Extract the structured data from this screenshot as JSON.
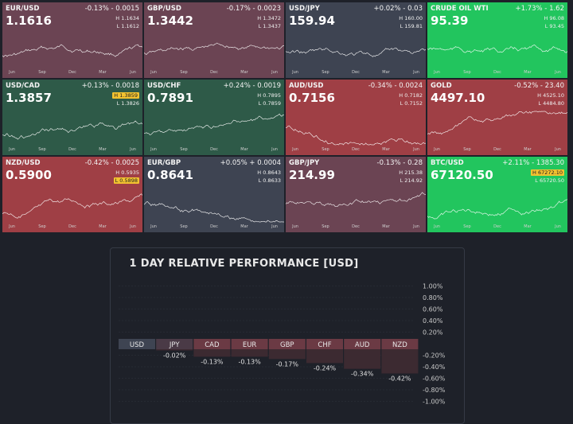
{
  "tiles": [
    {
      "symbol": "EUR/USD",
      "change": "-0.13% - 0.0015",
      "price": "1.1616",
      "high": "H 1.1634",
      "low": "L 1.1612",
      "bg": "#6b4453",
      "high_badge": false,
      "low_badge": false,
      "months": [
        "Jun",
        "Sep",
        "Dec",
        "Mar",
        "Jun"
      ]
    },
    {
      "symbol": "GBP/USD",
      "change": "-0.17% - 0.0023",
      "price": "1.3442",
      "high": "H 1.3472",
      "low": "L 1.3437",
      "bg": "#6b4453",
      "high_badge": false,
      "low_badge": false,
      "months": [
        "Jun",
        "Sep",
        "Dec",
        "Mar",
        "Jun"
      ]
    },
    {
      "symbol": "USD/JPY",
      "change": "+0.02% - 0.03",
      "price": "159.94",
      "high": "H 160.00",
      "low": "L 159.81",
      "bg": "#3e4452",
      "high_badge": false,
      "low_badge": false,
      "months": [
        "Jun",
        "Sep",
        "Dec",
        "Mar",
        "Jun"
      ]
    },
    {
      "symbol": "CRUDE OIL WTI",
      "change": "+1.73% - 1.62",
      "price": "95.39",
      "high": "H 96.08",
      "low": "L 93.45",
      "bg": "#22c55e",
      "high_badge": false,
      "low_badge": false,
      "months": [
        "Jun",
        "Sep",
        "Dec",
        "Mar",
        "Jun"
      ]
    },
    {
      "symbol": "USD/CAD",
      "change": "+0.13% - 0.0018",
      "price": "1.3857",
      "high": "H 1.3859",
      "low": "L 1.3826",
      "bg": "#2e5a48",
      "high_badge": true,
      "low_badge": false,
      "months": [
        "Jun",
        "Sep",
        "Dec",
        "Mar",
        "Jun"
      ]
    },
    {
      "symbol": "USD/CHF",
      "change": "+0.24% - 0.0019",
      "price": "0.7891",
      "high": "H 0.7895",
      "low": "L 0.7859",
      "bg": "#2e5a48",
      "high_badge": false,
      "low_badge": false,
      "months": [
        "Jun",
        "Sep",
        "Dec",
        "Mar",
        "Jun"
      ]
    },
    {
      "symbol": "AUD/USD",
      "change": "-0.34% - 0.0024",
      "price": "0.7156",
      "high": "H 0.7182",
      "low": "L 0.7152",
      "bg": "#9f3f45",
      "high_badge": false,
      "low_badge": false,
      "months": [
        "Jun",
        "Sep",
        "Dec",
        "Mar",
        "Jun"
      ]
    },
    {
      "symbol": "GOLD",
      "change": "-0.52% - 23.40",
      "price": "4497.10",
      "high": "H 4525.10",
      "low": "L 4484.80",
      "bg": "#9f3f45",
      "high_badge": false,
      "low_badge": false,
      "months": [
        "Jun",
        "Sep",
        "Dec",
        "Mar",
        "Jun"
      ]
    },
    {
      "symbol": "NZD/USD",
      "change": "-0.42% - 0.0025",
      "price": "0.5900",
      "high": "H 0.5935",
      "low": "L 0.5898",
      "bg": "#9f3f45",
      "high_badge": false,
      "low_badge": true,
      "months": [
        "Jun",
        "Sep",
        "Dec",
        "Mar",
        "Jun"
      ]
    },
    {
      "symbol": "EUR/GBP",
      "change": "+0.05% + 0.0004",
      "price": "0.8641",
      "high": "H 0.8643",
      "low": "L 0.8633",
      "bg": "#3e4452",
      "high_badge": false,
      "low_badge": false,
      "months": [
        "Jun",
        "Sep",
        "Dec",
        "Mar",
        "Jun"
      ]
    },
    {
      "symbol": "GBP/JPY",
      "change": "-0.13% - 0.28",
      "price": "214.99",
      "high": "H 215.38",
      "low": "L 214.92",
      "bg": "#6b4453",
      "high_badge": false,
      "low_badge": false,
      "months": [
        "Jun",
        "Sep",
        "Dec",
        "Mar",
        "Jun"
      ]
    },
    {
      "symbol": "BTC/USD",
      "change": "+2.11% - 1385.30",
      "price": "67120.50",
      "high": "H 67272.10",
      "low": "L 65720.50",
      "bg": "#22c55e",
      "high_badge": true,
      "low_badge": false,
      "months": [
        "Jun",
        "Sep",
        "Dec",
        "Mar",
        "Jun"
      ]
    }
  ],
  "performance": {
    "title": "1 DAY RELATIVE PERFORMANCE  [USD]",
    "chart_data": {
      "type": "bar",
      "title": "1 DAY RELATIVE PERFORMANCE  [USD]",
      "categories": [
        "USD",
        "JPY",
        "CAD",
        "EUR",
        "GBP",
        "CHF",
        "AUD",
        "NZD"
      ],
      "values": [
        0,
        -0.02,
        -0.13,
        -0.13,
        -0.17,
        -0.24,
        -0.34,
        -0.42
      ],
      "value_labels": [
        "",
        "-0.02%",
        "-0.13%",
        "-0.13%",
        "-0.17%",
        "-0.24%",
        "-0.34%",
        "-0.42%"
      ],
      "ylim": [
        -1.0,
        1.0
      ],
      "yticks": [
        "1.00%",
        "0.80%",
        "0.60%",
        "0.40%",
        "0.20%",
        "-0.20%",
        "-0.40%",
        "-0.60%",
        "-0.80%",
        "-1.00%"
      ],
      "ytick_values": [
        1.0,
        0.8,
        0.6,
        0.4,
        0.2,
        -0.2,
        -0.4,
        -0.6,
        -0.8,
        -1.0
      ]
    }
  }
}
